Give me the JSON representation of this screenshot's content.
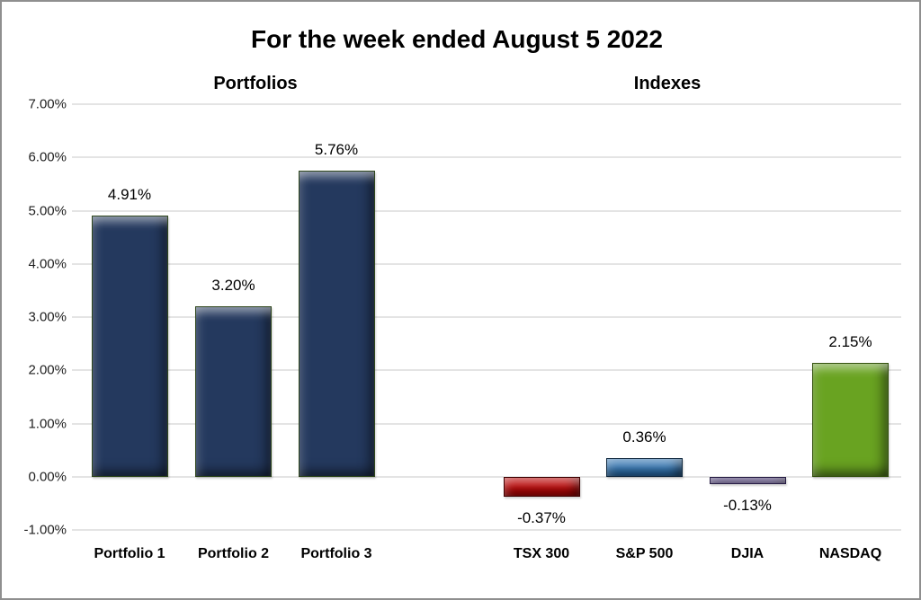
{
  "chart_data": {
    "type": "bar",
    "title": "For the week ended August 5 2022",
    "group_labels": [
      "Portfolios",
      "Indexes"
    ],
    "categories": [
      "Portfolio 1",
      "Portfolio 2",
      "Portfolio 3",
      "TSX 300",
      "S&P 500",
      "DJIA",
      "NASDAQ"
    ],
    "groups": [
      "Portfolios",
      "Portfolios",
      "Portfolios",
      "Indexes",
      "Indexes",
      "Indexes",
      "Indexes"
    ],
    "values": [
      4.91,
      3.2,
      5.76,
      -0.37,
      0.36,
      -0.13,
      2.15
    ],
    "data_labels": [
      "4.91%",
      "3.20%",
      "5.76%",
      "-0.37%",
      "0.36%",
      "-0.13%",
      "2.15%"
    ],
    "bar_colors": [
      {
        "fill": "#24395E",
        "border": "#2F471C"
      },
      {
        "fill": "#24395E",
        "border": "#2F471C"
      },
      {
        "fill": "#24395E",
        "border": "#2F471C"
      },
      {
        "fill": "#C00000",
        "border": "#3F0000"
      },
      {
        "fill": "#2E75B6",
        "border": "#122A40"
      },
      {
        "fill": "#5C4699",
        "border": "#261C44"
      },
      {
        "fill": "#69A321",
        "border": "#33510D"
      }
    ],
    "ylim": [
      -1,
      7
    ],
    "ytick_labels": [
      "7.00%",
      "6.00%",
      "5.00%",
      "4.00%",
      "3.00%",
      "2.00%",
      "1.00%",
      "0.00%",
      "-1.00%"
    ],
    "grid": true,
    "legend": "none",
    "xlabel": "",
    "ylabel": ""
  }
}
